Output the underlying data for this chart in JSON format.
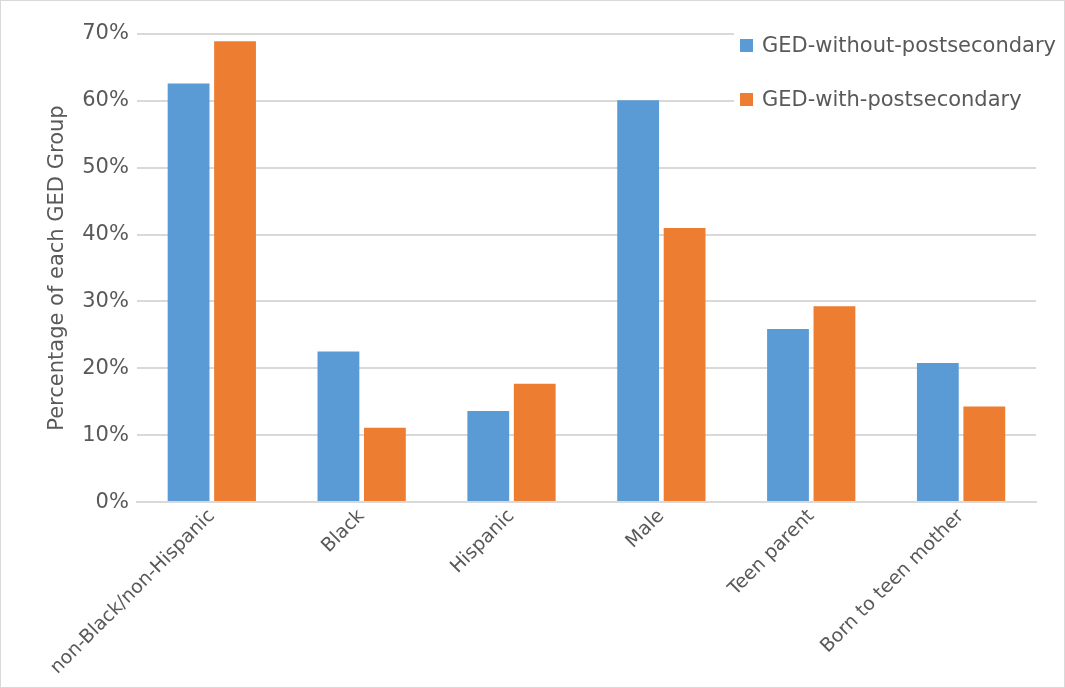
{
  "chart_data": {
    "type": "bar",
    "ylabel": "Percentage of each GED Group",
    "categories": [
      "non-Black/non-Hispanic",
      "Black",
      "Hispanic",
      "Male",
      "Teen parent",
      "Born to teen mother"
    ],
    "series": [
      {
        "name": "GED-without-postsecondary",
        "color": "#5b9bd5",
        "values": [
          62.6,
          22.5,
          13.6,
          60.1,
          25.9,
          20.8
        ]
      },
      {
        "name": "GED-with-postsecondary",
        "color": "#ed7d31",
        "values": [
          68.9,
          11.1,
          17.7,
          41.0,
          29.3,
          14.3
        ]
      }
    ],
    "ylim": [
      0,
      70
    ],
    "yticks": [
      {
        "value": 0,
        "label": "0%"
      },
      {
        "value": 10,
        "label": "10%"
      },
      {
        "value": 20,
        "label": "20%"
      },
      {
        "value": 30,
        "label": "30%"
      },
      {
        "value": 40,
        "label": "40%"
      },
      {
        "value": 50,
        "label": "50%"
      },
      {
        "value": 60,
        "label": "60%"
      },
      {
        "value": 70,
        "label": "70%"
      }
    ],
    "grid": "y",
    "legend": "top right"
  }
}
